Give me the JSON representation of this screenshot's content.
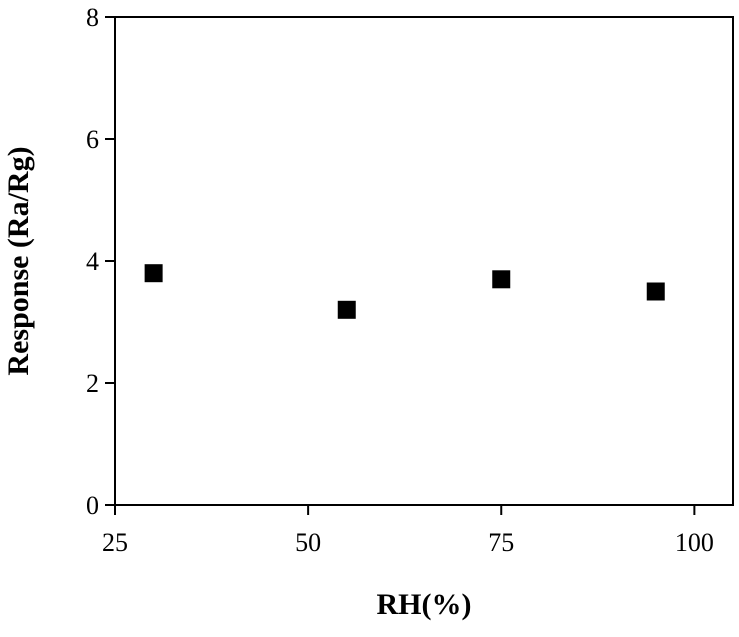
{
  "chart_data": {
    "type": "scatter",
    "x_label": "RH(%)",
    "y_label": "Response (Ra/Rg)",
    "x": [
      30,
      55,
      75,
      95
    ],
    "values": [
      3.8,
      3.2,
      3.7,
      3.5
    ],
    "color": "#000000",
    "xlim": [
      25,
      105
    ],
    "xticks": [
      25,
      50,
      75,
      100
    ],
    "ylim": [
      0,
      8
    ],
    "yticks": [
      0,
      2,
      4,
      6,
      8
    ],
    "grid": false
  }
}
